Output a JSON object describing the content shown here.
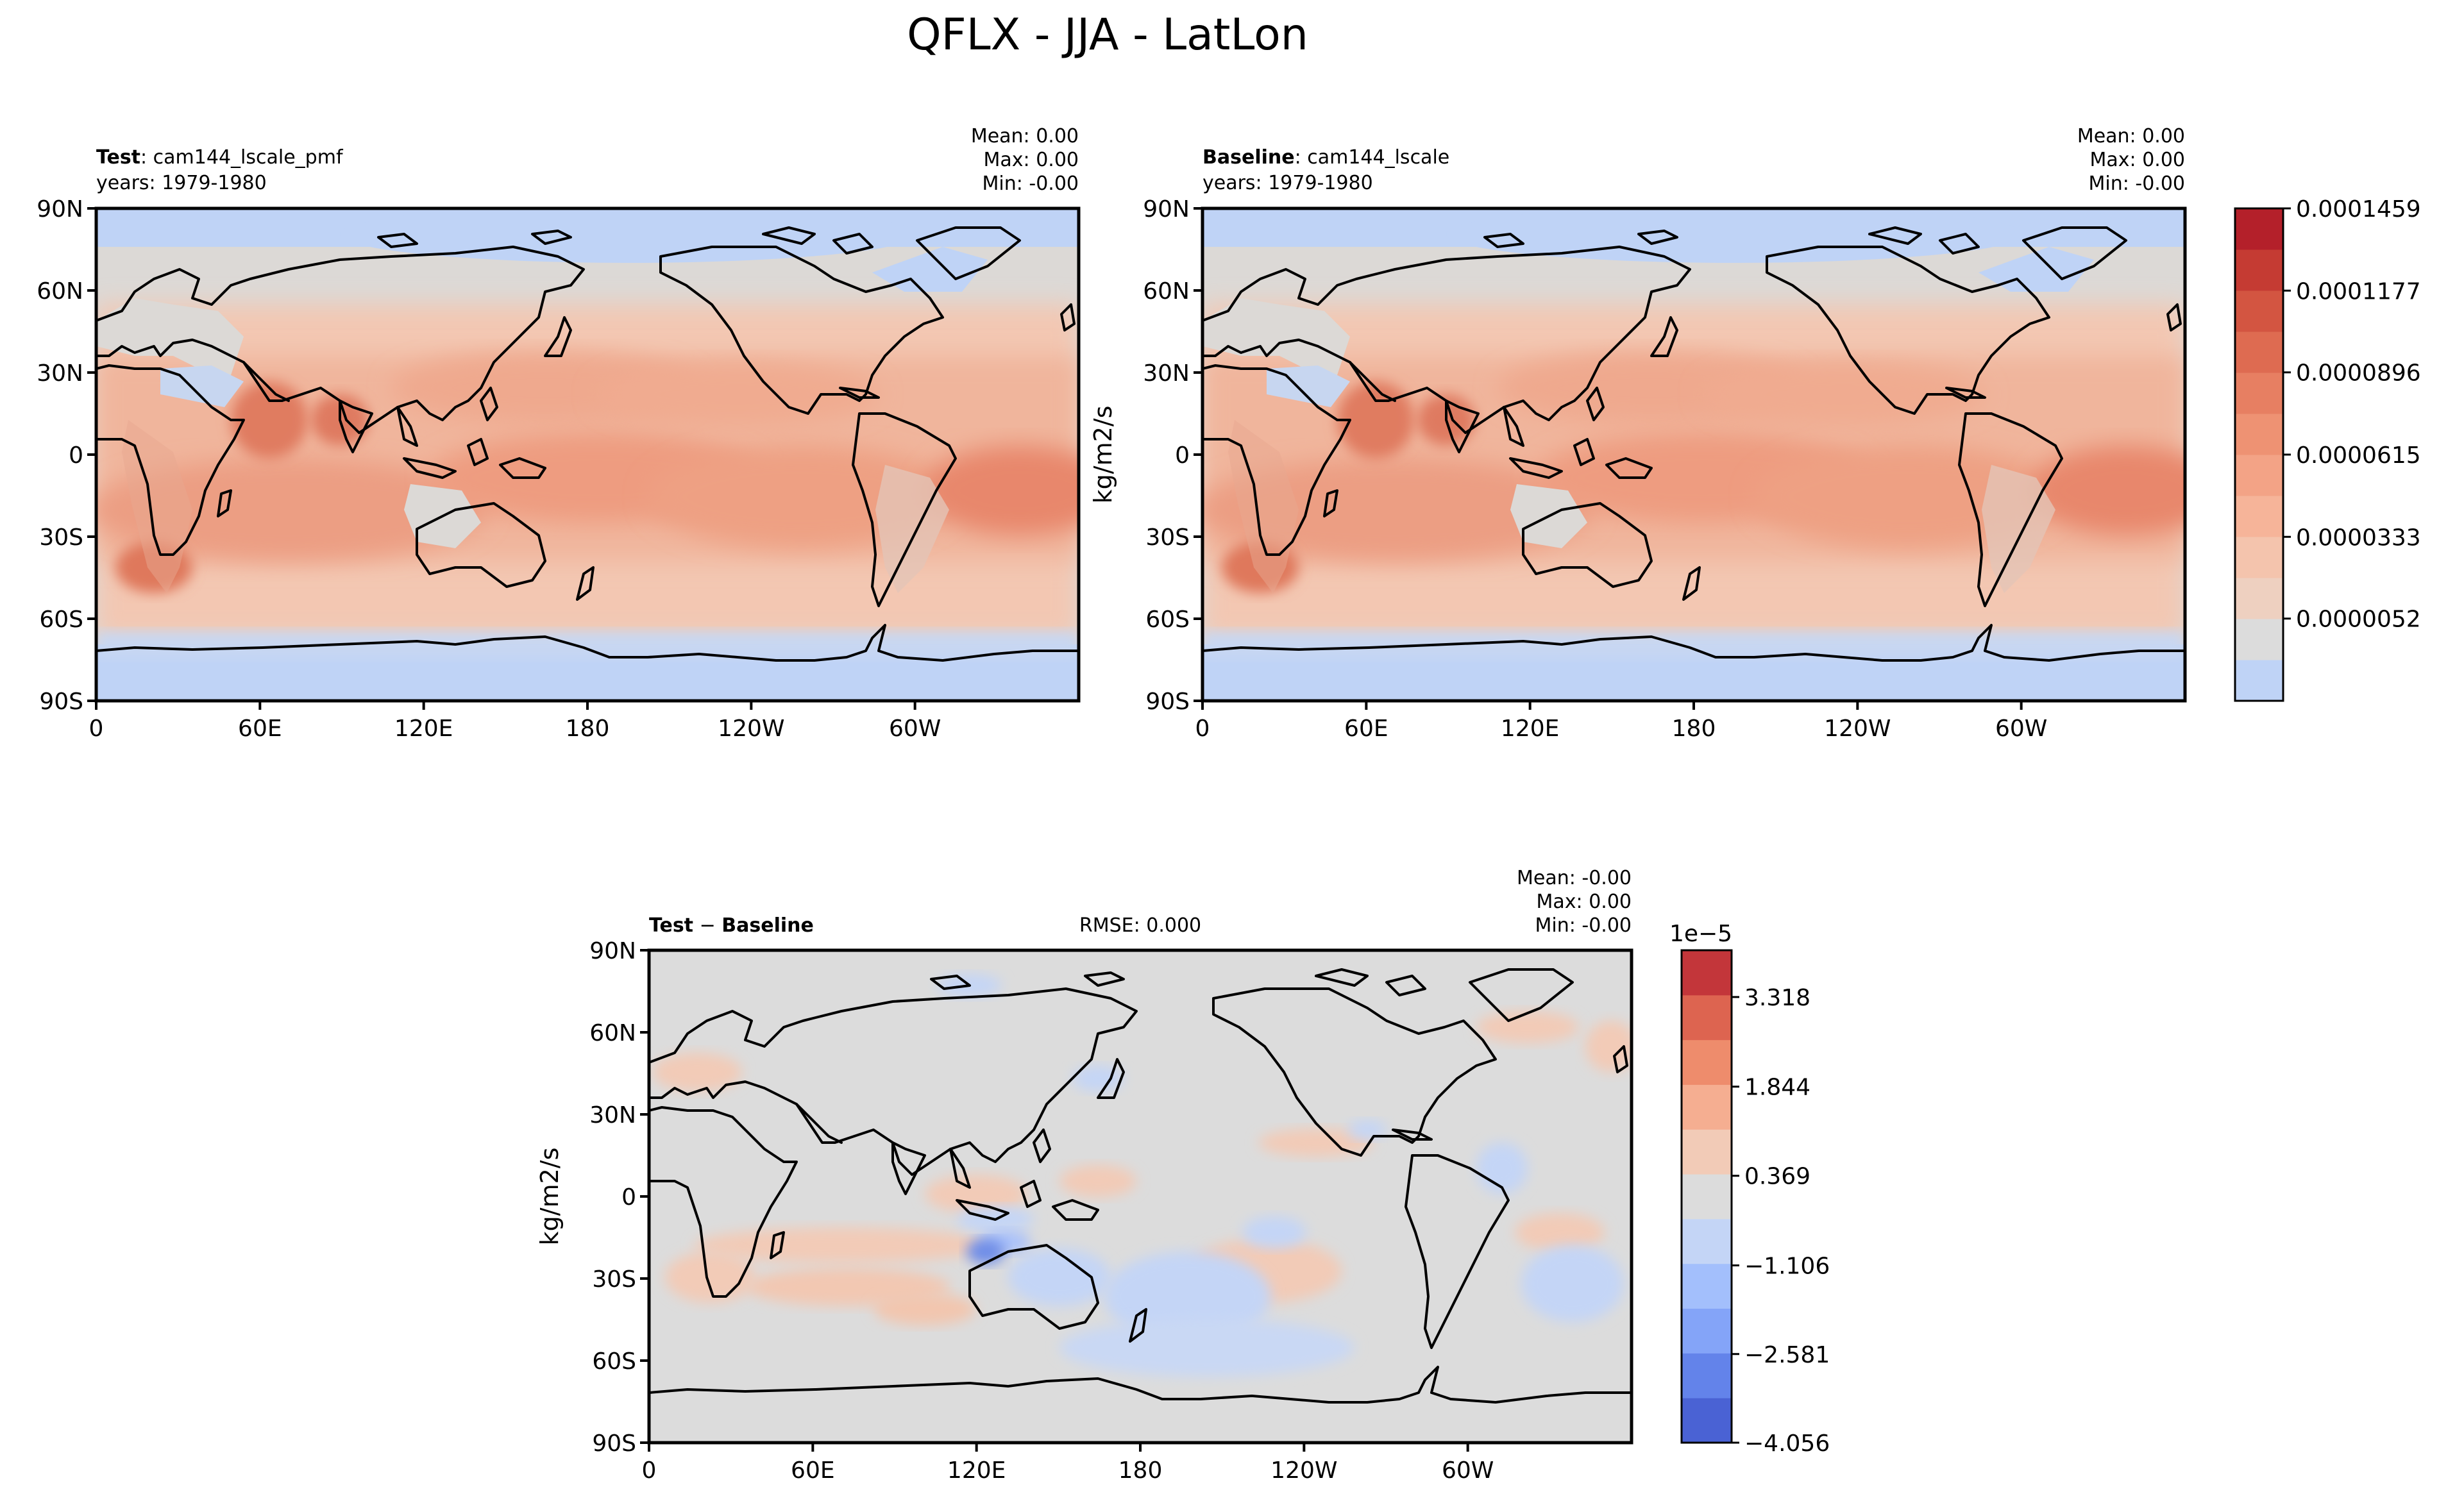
{
  "title": "QFLX - JJA - LatLon",
  "x_ticks": [
    "0",
    "60E",
    "120E",
    "180",
    "120W",
    "60W"
  ],
  "y_ticks": [
    "90N",
    "60N",
    "30N",
    "0",
    "30S",
    "60S",
    "90S"
  ],
  "panels": [
    {
      "id": "test",
      "label_bold": "Test",
      "label_rest": ": cam144_lscale_pmf",
      "years": "years: 1979-1980",
      "stats": [
        "Mean:  0.00",
        "Max:  0.00",
        "Min: -0.00"
      ],
      "ylabel": ""
    },
    {
      "id": "baseline",
      "label_bold": "Baseline",
      "label_rest": ": cam144_lscale",
      "years": "years: 1979-1980",
      "stats": [
        "Mean:  0.00",
        "Max:  0.00",
        "Min: -0.00"
      ],
      "ylabel": "kg/m2/s"
    },
    {
      "id": "diff",
      "label_bold": "Test",
      "label_mid": " − ",
      "label_bold2": "Baseline",
      "rmse": "RMSE: 0.000",
      "stats": [
        "Mean: -0.00",
        "Max:  0.00",
        "Min: -0.00"
      ],
      "ylabel": "kg/m2/s"
    }
  ],
  "colorbar_top": {
    "ticks": [
      "0.0001459",
      "0.0001177",
      "0.0000896",
      "0.0000615",
      "0.0000333",
      "0.0000052"
    ],
    "colors": [
      "#bfd3f6",
      "#dcdcdc",
      "#eed0c0",
      "#f4c4ad",
      "#f6b499",
      "#f3a386",
      "#ee9273",
      "#e77f62",
      "#de6b51",
      "#d35541",
      "#c53b33",
      "#b4202a"
    ]
  },
  "colorbar_diff": {
    "scale_label": "1e−5",
    "ticks": [
      "3.318",
      "1.844",
      "0.369",
      "−1.106",
      "−2.581",
      "−4.056"
    ],
    "colors": [
      "#4a62d4",
      "#6383ea",
      "#84a4f8",
      "#a3bffc",
      "#c4d5f6",
      "#dcdcdc",
      "#f2cbb7",
      "#f5ae91",
      "#ee8c6c",
      "#dd6450",
      "#c3363a"
    ]
  },
  "chart_data": [
    {
      "type": "heatmap",
      "title": "Test: cam144_lscale_pmf",
      "xlabel": "",
      "ylabel": "",
      "x_ticks": [
        "0",
        "60E",
        "120E",
        "180",
        "120W",
        "60W"
      ],
      "y_ticks": [
        "90N",
        "60N",
        "30N",
        "0",
        "30S",
        "60S",
        "90S"
      ],
      "xlim": [
        0,
        360
      ],
      "ylim": [
        -90,
        90
      ],
      "stats": {
        "mean": 0.0,
        "max": 0.0,
        "min": -0.0
      },
      "colorbar_range": [
        5.2e-06,
        0.0001459
      ],
      "description_levels": "evaporation flux: maxima over subtropical oceans (~0.00007-0.00009), minima over polar regions and Sahara"
    },
    {
      "type": "heatmap",
      "title": "Baseline: cam144_lscale",
      "xlabel": "",
      "ylabel": "kg/m2/s",
      "x_ticks": [
        "0",
        "60E",
        "120E",
        "180",
        "120W",
        "60W"
      ],
      "y_ticks": [
        "90N",
        "60N",
        "30N",
        "0",
        "30S",
        "60S",
        "90S"
      ],
      "xlim": [
        0,
        360
      ],
      "ylim": [
        -90,
        90
      ],
      "stats": {
        "mean": 0.0,
        "max": 0.0,
        "min": -0.0
      },
      "colorbar_range": [
        5.2e-06,
        0.0001459
      ]
    },
    {
      "type": "heatmap",
      "title": "Test − Baseline",
      "xlabel": "",
      "ylabel": "kg/m2/s",
      "x_ticks": [
        "0",
        "60E",
        "120E",
        "180",
        "120W",
        "60W"
      ],
      "y_ticks": [
        "90N",
        "60N",
        "30N",
        "0",
        "30S",
        "60S",
        "90S"
      ],
      "xlim": [
        0,
        360
      ],
      "ylim": [
        -90,
        90
      ],
      "stats": {
        "mean": -0.0,
        "max": 0.0,
        "min": -0.0,
        "rmse": 0.0
      },
      "colorbar_range": [
        -4.056e-05,
        4.8e-05
      ]
    }
  ]
}
